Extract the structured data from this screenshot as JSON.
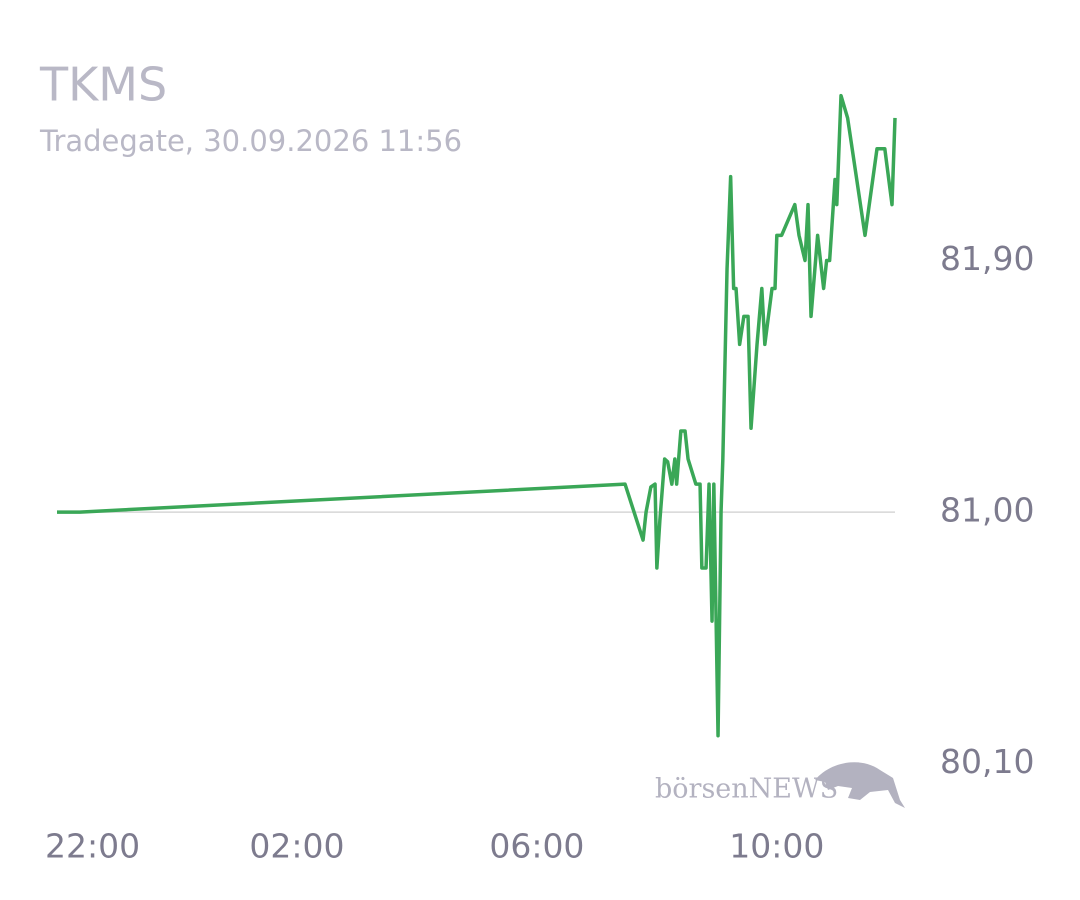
{
  "chart_data": {
    "type": "line",
    "title": "TKMS",
    "subtitle": "Tradegate, 30.09.2026 11:56",
    "watermark": "börsenNEWS",
    "reference_line": 81,
    "xlim": [
      -2,
      11.97
    ],
    "xticks": [
      {
        "value": -2,
        "label": "22:00"
      },
      {
        "value": 2,
        "label": "02:00"
      },
      {
        "value": 6,
        "label": "06:00"
      },
      {
        "value": 10,
        "label": "10:00"
      }
    ],
    "ylim": [
      79.97,
      82.51
    ],
    "yticks": [
      {
        "value": 81.9,
        "label": "81,90"
      },
      {
        "value": 81,
        "label": "81,00"
      },
      {
        "value": 80.1,
        "label": "80,10"
      }
    ],
    "series": [
      {
        "color": "#3aa757",
        "x": [
          -2,
          -1.62,
          7.47,
          7.77,
          7.82,
          7.9,
          7.97,
          8.0,
          8.05,
          8.13,
          8.18,
          8.25,
          8.3,
          8.33,
          8.4,
          8.47,
          8.52,
          8.65,
          8.72,
          8.75,
          8.82,
          8.87,
          8.92,
          8.95,
          9.02,
          9.07,
          9.1,
          9.17,
          9.23,
          9.28,
          9.32,
          9.38,
          9.45,
          9.52,
          9.57,
          9.67,
          9.75,
          9.8,
          9.92,
          9.97,
          10.0,
          10.08,
          10.3,
          10.37,
          10.47,
          10.52,
          10.57,
          10.68,
          10.78,
          10.83,
          10.88,
          10.97,
          11.0,
          11.07,
          11.18,
          11.47,
          11.67,
          11.8,
          11.92,
          11.97
        ],
        "values": [
          81.0,
          81.0,
          81.1,
          80.9,
          81.0,
          81.09,
          81.1,
          80.8,
          80.97,
          81.19,
          81.18,
          81.1,
          81.19,
          81.1,
          81.29,
          81.29,
          81.19,
          81.1,
          81.1,
          80.8,
          80.8,
          81.1,
          80.61,
          81.1,
          80.2,
          81.0,
          81.19,
          81.87,
          82.2,
          81.8,
          81.8,
          81.6,
          81.7,
          81.7,
          81.3,
          81.6,
          81.8,
          81.6,
          81.8,
          81.8,
          81.99,
          81.99,
          82.1,
          81.99,
          81.9,
          82.1,
          81.7,
          81.99,
          81.8,
          81.9,
          81.9,
          82.19,
          82.1,
          82.49,
          82.41,
          81.99,
          82.3,
          82.3,
          82.1,
          82.41
        ]
      }
    ]
  }
}
